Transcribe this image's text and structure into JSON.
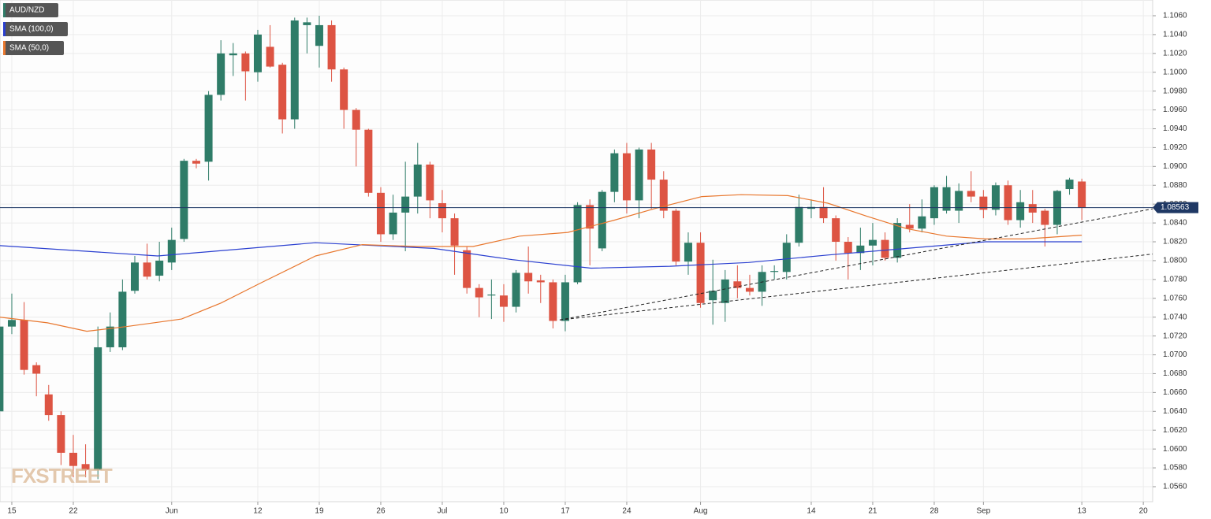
{
  "chart_data": {
    "type": "candlestick",
    "up_color": "#2f7c68",
    "down_color": "#dd5443",
    "grid": true,
    "xlim": [
      0.04,
      93.76
    ],
    "ylim": [
      1.05441,
      1.10767
    ],
    "xticks": [
      {
        "value": 1,
        "label": "15"
      },
      {
        "value": 6,
        "label": "22"
      },
      {
        "value": 14,
        "label": "Jun"
      },
      {
        "value": 21,
        "label": "12"
      },
      {
        "value": 26,
        "label": "19"
      },
      {
        "value": 31,
        "label": "26"
      },
      {
        "value": 36,
        "label": "Jul"
      },
      {
        "value": 41,
        "label": "10"
      },
      {
        "value": 46,
        "label": "17"
      },
      {
        "value": 51,
        "label": "24"
      },
      {
        "value": 57,
        "label": "Aug"
      },
      {
        "value": 66,
        "label": "14"
      },
      {
        "value": 71,
        "label": "21"
      },
      {
        "value": 76,
        "label": "28"
      },
      {
        "value": 80,
        "label": "Sep"
      },
      {
        "value": 88,
        "label": "13"
      },
      {
        "value": 93,
        "label": "20"
      }
    ],
    "yticks": [
      {
        "value": 1.056,
        "label": "1.0560"
      },
      {
        "value": 1.058,
        "label": "1.0580"
      },
      {
        "value": 1.06,
        "label": "1.0600"
      },
      {
        "value": 1.062,
        "label": "1.0620"
      },
      {
        "value": 1.064,
        "label": "1.0640"
      },
      {
        "value": 1.066,
        "label": "1.0660"
      },
      {
        "value": 1.068,
        "label": "1.0680"
      },
      {
        "value": 1.07,
        "label": "1.0700"
      },
      {
        "value": 1.072,
        "label": "1.0720"
      },
      {
        "value": 1.074,
        "label": "1.0740"
      },
      {
        "value": 1.076,
        "label": "1.0760"
      },
      {
        "value": 1.078,
        "label": "1.0780"
      },
      {
        "value": 1.08,
        "label": "1.0800"
      },
      {
        "value": 1.082,
        "label": "1.0820"
      },
      {
        "value": 1.084,
        "label": "1.0840"
      },
      {
        "value": 1.086,
        "label": "1.0860"
      },
      {
        "value": 1.088,
        "label": "1.0880"
      },
      {
        "value": 1.09,
        "label": "1.0900"
      },
      {
        "value": 1.092,
        "label": "1.0920"
      },
      {
        "value": 1.094,
        "label": "1.0940"
      },
      {
        "value": 1.096,
        "label": "1.0960"
      },
      {
        "value": 1.098,
        "label": "1.0980"
      },
      {
        "value": 1.1,
        "label": "1.1000"
      },
      {
        "value": 1.102,
        "label": "1.1020"
      },
      {
        "value": 1.104,
        "label": "1.1040"
      },
      {
        "value": 1.106,
        "label": "1.1060"
      }
    ],
    "candles": {
      "name": "AUD/NZD",
      "legend_color": "#2f7c68",
      "x": [
        0,
        1,
        2,
        3,
        4,
        5,
        6,
        7,
        8,
        9,
        10,
        11,
        12,
        13,
        14,
        15,
        16,
        17,
        18,
        19,
        20,
        21,
        22,
        23,
        24,
        25,
        26,
        27,
        28,
        29,
        30,
        31,
        32,
        33,
        34,
        35,
        36,
        37,
        38,
        39,
        40,
        41,
        42,
        43,
        44,
        45,
        46,
        47,
        48,
        49,
        50,
        51,
        52,
        53,
        54,
        55,
        56,
        57,
        58,
        59,
        60,
        61,
        62,
        63,
        64,
        65,
        66,
        67,
        68,
        69,
        70,
        71,
        72,
        73,
        74,
        75,
        76,
        77,
        78,
        79,
        80,
        81,
        82,
        83,
        84,
        85,
        86,
        87,
        88
      ],
      "open": [
        1.064,
        1.073,
        1.0737,
        1.0689,
        1.0658,
        1.0636,
        1.0596,
        1.0584,
        1.0578,
        1.0708,
        1.0708,
        1.0768,
        1.0798,
        1.0784,
        1.0798,
        1.0823,
        1.0906,
        1.0905,
        1.0976,
        1.1018,
        1.102,
        1.1,
        1.1027,
        1.1008,
        1.095,
        1.105,
        1.1028,
        1.105,
        1.1003,
        1.096,
        1.0939,
        1.0872,
        1.0828,
        1.0851,
        1.0868,
        1.0902,
        1.0861,
        1.0845,
        1.0811,
        1.0771,
        1.0763,
        1.0763,
        1.0751,
        1.0787,
        1.0779,
        1.0777,
        1.0736,
        1.0777,
        1.0859,
        1.0813,
        1.0873,
        1.0914,
        1.0864,
        1.0918,
        1.0886,
        1.0853,
        1.0799,
        1.0819,
        1.0758,
        1.0755,
        1.0778,
        1.0771,
        1.0767,
        1.0788,
        1.0788,
        1.0819,
        1.0855,
        1.0857,
        1.0845,
        1.082,
        1.0808,
        1.0816,
        1.0822,
        1.0803,
        1.0838,
        1.0834,
        1.0845,
        1.0853,
        1.0853,
        1.0874,
        1.0868,
        1.0854,
        1.088,
        1.0843,
        1.086,
        1.0853,
        1.0838,
        1.0876,
        1.0884
      ],
      "high": [
        1.0735,
        1.0765,
        1.0756,
        1.0692,
        1.0668,
        1.064,
        1.0615,
        1.0605,
        1.073,
        1.0745,
        1.078,
        1.0805,
        1.0818,
        1.082,
        1.0835,
        1.0908,
        1.0908,
        1.098,
        1.1034,
        1.1031,
        1.1022,
        1.1045,
        1.105,
        1.101,
        1.1058,
        1.1058,
        1.106,
        1.1055,
        1.1005,
        1.0962,
        1.094,
        1.0878,
        1.087,
        1.0905,
        1.0925,
        1.0905,
        1.0875,
        1.085,
        1.0815,
        1.0775,
        1.078,
        1.0775,
        1.079,
        1.0815,
        1.0785,
        1.078,
        1.0785,
        1.0862,
        1.0865,
        1.0875,
        1.0918,
        1.0925,
        1.092,
        1.0925,
        1.0895,
        1.0855,
        1.083,
        1.083,
        1.0801,
        1.079,
        1.0795,
        1.0785,
        1.0795,
        1.0795,
        1.0828,
        1.087,
        1.0865,
        1.0878,
        1.0848,
        1.0825,
        1.0835,
        1.084,
        1.083,
        1.0845,
        1.086,
        1.0865,
        1.088,
        1.089,
        1.0882,
        1.0895,
        1.0875,
        1.0883,
        1.0885,
        1.0875,
        1.0875,
        1.0855,
        1.0875,
        1.0888,
        1.0887
      ],
      "low": [
        1.0628,
        1.0722,
        1.0679,
        1.0656,
        1.063,
        1.0583,
        1.057,
        1.057,
        1.0568,
        1.0703,
        1.0705,
        1.0765,
        1.078,
        1.0778,
        1.079,
        1.082,
        1.0898,
        1.0885,
        1.097,
        1.0996,
        1.097,
        1.099,
        1.1005,
        1.0935,
        1.094,
        1.102,
        1.1005,
        1.099,
        1.094,
        1.09,
        1.0868,
        1.082,
        1.0822,
        1.081,
        1.085,
        1.0845,
        1.083,
        1.0785,
        1.0765,
        1.074,
        1.0738,
        1.0735,
        1.0745,
        1.0765,
        1.0755,
        1.0728,
        1.0725,
        1.0775,
        1.0795,
        1.081,
        1.0862,
        1.085,
        1.0845,
        1.0855,
        1.0845,
        1.0795,
        1.0785,
        1.075,
        1.0732,
        1.0735,
        1.076,
        1.0763,
        1.0752,
        1.078,
        1.078,
        1.0815,
        1.0845,
        1.084,
        1.08,
        1.078,
        1.079,
        1.0795,
        1.08,
        1.0798,
        1.083,
        1.083,
        1.0838,
        1.085,
        1.084,
        1.0862,
        1.0845,
        1.0848,
        1.0838,
        1.0835,
        1.084,
        1.0815,
        1.0828,
        1.087,
        1.0843
      ],
      "close": [
        1.073,
        1.0737,
        1.0684,
        1.068,
        1.0636,
        1.0596,
        1.0582,
        1.0578,
        1.0708,
        1.073,
        1.0767,
        1.0798,
        1.0783,
        1.08,
        1.0822,
        1.0906,
        1.0903,
        1.0976,
        1.102,
        1.102,
        1.1001,
        1.104,
        1.1006,
        1.095,
        1.1055,
        1.1053,
        1.105,
        1.1003,
        1.096,
        1.0939,
        1.0872,
        1.0828,
        1.0851,
        1.0868,
        1.0902,
        1.0864,
        1.0845,
        1.0816,
        1.0771,
        1.0761,
        1.0764,
        1.0751,
        1.0787,
        1.0778,
        1.0777,
        1.0736,
        1.0777,
        1.0859,
        1.0834,
        1.0873,
        1.0914,
        1.0864,
        1.0918,
        1.0886,
        1.0853,
        1.0799,
        1.0819,
        1.0755,
        1.0768,
        1.078,
        1.0771,
        1.0767,
        1.0788,
        1.0789,
        1.0819,
        1.0857,
        1.0857,
        1.0845,
        1.082,
        1.0808,
        1.0816,
        1.0822,
        1.0803,
        1.084,
        1.0834,
        1.0847,
        1.0878,
        1.0878,
        1.0874,
        1.0868,
        1.0854,
        1.088,
        1.0843,
        1.0862,
        1.0851,
        1.0838,
        1.0874,
        1.0886,
        1.08563
      ]
    },
    "series": [
      {
        "name": "SMA (100,0)",
        "color": "#2a3fd0",
        "x": [
          0,
          12.86,
          25.68,
          35.3,
          41.7,
          48.1,
          54.5,
          60.9,
          67.35,
          73.75,
          80.17,
          88
        ],
        "values": [
          1.0816,
          1.0805,
          1.0819,
          1.0813,
          1.0801,
          1.0792,
          1.0794,
          1.0798,
          1.0806,
          1.0813,
          1.082,
          1.082
        ]
      },
      {
        "name": "SMA (50,0)",
        "color": "#e8772e",
        "x": [
          0,
          3.9,
          7.1,
          10.3,
          14.8,
          18,
          21.2,
          25.7,
          29.5,
          34,
          38.5,
          42.3,
          46.2,
          50,
          53.2,
          57.1,
          60.3,
          64.1,
          67.35,
          70.55,
          73.75,
          77,
          80.2,
          83.4,
          88
        ],
        "values": [
          1.074,
          1.0734,
          1.0725,
          1.073,
          1.0738,
          1.0755,
          1.0776,
          1.0805,
          1.0817,
          1.0815,
          1.0815,
          1.0826,
          1.083,
          1.0843,
          1.0855,
          1.0868,
          1.087,
          1.0869,
          1.0861,
          1.0847,
          1.0834,
          1.0826,
          1.0823,
          1.0823,
          1.0827
        ]
      }
    ],
    "trendlines": [
      {
        "x": [
          45.55,
          93.76
        ],
        "values": [
          1.0737,
          1.0855
        ]
      },
      {
        "x": [
          45.55,
          93.76
        ],
        "values": [
          1.0737,
          1.0807
        ]
      }
    ],
    "last_price": 1.08563,
    "price_line_color": "#1f3864",
    "watermark": "FXSTREET"
  }
}
